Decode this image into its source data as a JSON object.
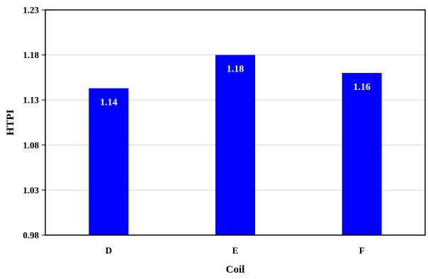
{
  "chart_data": {
    "type": "bar",
    "categories": [
      "D",
      "E",
      "F"
    ],
    "values": [
      1.143,
      1.18,
      1.16
    ],
    "data_labels": [
      "1.14",
      "1.18",
      "1.16"
    ],
    "xlabel": "Coil",
    "ylabel": "HTPI",
    "ylim": [
      0.98,
      1.23
    ],
    "yticks": [
      "0.98",
      "1.03",
      "1.08",
      "1.13",
      "1.18",
      "1.23"
    ],
    "grid": true,
    "bar_color": "#0000ff",
    "grid_color": "#d9d9d9",
    "title": ""
  }
}
